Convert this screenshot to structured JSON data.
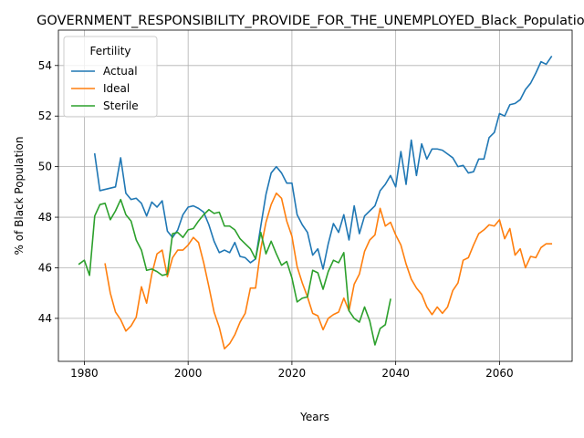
{
  "chart_data": {
    "type": "line",
    "title": "GOVERNMENT_RESPONSIBILITY_PROVIDE_FOR_THE_UNEMPLOYED_Black_Population",
    "xlabel": "Years",
    "ylabel": "% of Black Population",
    "xlim": [
      1975,
      2074
    ],
    "ylim": [
      42.3,
      55.4
    ],
    "xticks": [
      1980,
      2000,
      2020,
      2040,
      2060
    ],
    "yticks": [
      44,
      46,
      48,
      50,
      52,
      54
    ],
    "grid": true,
    "legend": {
      "title": "Fertility",
      "placement": "top-left"
    },
    "series": [
      {
        "name": "Actual",
        "color": "#1f77b4",
        "x": [
          1982,
          1983,
          1984,
          1985,
          1986,
          1987,
          1988,
          1989,
          1990,
          1991,
          1992,
          1993,
          1994,
          1995,
          1996,
          1997,
          1998,
          1999,
          2000,
          2001,
          2002,
          2003,
          2004,
          2005,
          2006,
          2007,
          2008,
          2009,
          2010,
          2011,
          2012,
          2013,
          2014,
          2015,
          2016,
          2017,
          2018,
          2019,
          2020,
          2021,
          2022,
          2023,
          2024,
          2025,
          2026,
          2027,
          2028,
          2029,
          2030,
          2031,
          2032,
          2033,
          2034,
          2035,
          2036,
          2037,
          2038,
          2039,
          2040,
          2041,
          2042,
          2043,
          2044,
          2045,
          2046,
          2047,
          2048,
          2049,
          2050,
          2051,
          2052,
          2053,
          2054,
          2055,
          2056,
          2057,
          2058,
          2059,
          2060,
          2061,
          2062,
          2063,
          2064,
          2065,
          2066,
          2067,
          2068,
          2069,
          2070
        ],
        "y": [
          50.5,
          49.05,
          49.1,
          49.15,
          49.2,
          50.35,
          48.95,
          48.7,
          48.75,
          48.55,
          48.05,
          48.6,
          48.4,
          48.65,
          47.45,
          47.2,
          47.5,
          48.1,
          48.4,
          48.45,
          48.35,
          48.2,
          47.7,
          47.05,
          46.6,
          46.7,
          46.6,
          47.0,
          46.45,
          46.4,
          46.2,
          46.35,
          47.65,
          48.9,
          49.75,
          50.0,
          49.75,
          49.35,
          49.35,
          48.1,
          47.7,
          47.4,
          46.5,
          46.75,
          45.95,
          46.95,
          47.75,
          47.4,
          48.1,
          47.1,
          48.45,
          47.35,
          48.05,
          48.25,
          48.45,
          49.05,
          49.3,
          49.65,
          49.2,
          50.6,
          49.3,
          51.05,
          49.65,
          50.9,
          50.3,
          50.7,
          50.7,
          50.65,
          50.5,
          50.35,
          50.0,
          50.05,
          49.75,
          49.8,
          50.3,
          50.3,
          51.15,
          51.35,
          52.1,
          52.0,
          52.45,
          52.5,
          52.65,
          53.05,
          53.3,
          53.7,
          54.15,
          54.05,
          54.35
        ]
      },
      {
        "name": "Ideal",
        "color": "#ff7f0e",
        "x": [
          1984,
          1985,
          1986,
          1987,
          1988,
          1989,
          1990,
          1991,
          1992,
          1993,
          1994,
          1995,
          1996,
          1997,
          1998,
          1999,
          2000,
          2001,
          2002,
          2003,
          2004,
          2005,
          2006,
          2007,
          2008,
          2009,
          2010,
          2011,
          2012,
          2013,
          2014,
          2015,
          2016,
          2017,
          2018,
          2019,
          2020,
          2021,
          2022,
          2023,
          2024,
          2025,
          2026,
          2027,
          2028,
          2029,
          2030,
          2031,
          2032,
          2033,
          2034,
          2035,
          2036,
          2037,
          2038,
          2039,
          2040,
          2041,
          2042,
          2043,
          2044,
          2045,
          2046,
          2047,
          2048,
          2049,
          2050,
          2051,
          2052,
          2053,
          2054,
          2055,
          2056,
          2057,
          2058,
          2059,
          2060,
          2061,
          2062,
          2063,
          2064,
          2065,
          2066,
          2067,
          2068,
          2069,
          2070
        ],
        "y": [
          46.15,
          45.0,
          44.25,
          43.95,
          43.5,
          43.7,
          44.05,
          45.25,
          44.6,
          45.75,
          46.55,
          46.7,
          45.65,
          46.4,
          46.7,
          46.7,
          46.9,
          47.2,
          47.0,
          46.2,
          45.25,
          44.25,
          43.65,
          42.8,
          43.0,
          43.35,
          43.85,
          44.2,
          45.2,
          45.2,
          46.75,
          47.8,
          48.5,
          48.95,
          48.75,
          47.85,
          47.25,
          46.05,
          45.4,
          44.85,
          44.2,
          44.1,
          43.55,
          44.0,
          44.15,
          44.25,
          44.8,
          44.3,
          45.35,
          45.75,
          46.65,
          47.1,
          47.3,
          48.35,
          47.65,
          47.8,
          47.3,
          46.9,
          46.15,
          45.55,
          45.2,
          44.95,
          44.45,
          44.15,
          44.45,
          44.2,
          44.45,
          45.1,
          45.4,
          46.3,
          46.4,
          46.9,
          47.35,
          47.5,
          47.7,
          47.65,
          47.9,
          47.15,
          47.55,
          46.5,
          46.75,
          46.0,
          46.45,
          46.4,
          46.8,
          46.95,
          46.95
        ]
      },
      {
        "name": "Sterile",
        "color": "#2ca02c",
        "x": [
          1979,
          1980,
          1981,
          1982,
          1983,
          1984,
          1985,
          1986,
          1987,
          1988,
          1989,
          1990,
          1991,
          1992,
          1993,
          1994,
          1995,
          1996,
          1997,
          1998,
          1999,
          2000,
          2001,
          2002,
          2003,
          2004,
          2005,
          2006,
          2007,
          2008,
          2009,
          2010,
          2011,
          2012,
          2013,
          2014,
          2015,
          2016,
          2017,
          2018,
          2019,
          2020,
          2021,
          2022,
          2023,
          2024,
          2025,
          2026,
          2027,
          2028,
          2029,
          2030,
          2031,
          2032,
          2033,
          2034,
          2035,
          2036,
          2037,
          2038,
          2039
        ],
        "y": [
          46.15,
          46.3,
          45.7,
          48.05,
          48.5,
          48.55,
          47.9,
          48.25,
          48.7,
          48.1,
          47.85,
          47.1,
          46.7,
          45.9,
          45.95,
          45.85,
          45.7,
          45.75,
          47.35,
          47.4,
          47.2,
          47.5,
          47.55,
          47.85,
          48.1,
          48.3,
          48.15,
          48.2,
          47.65,
          47.65,
          47.5,
          47.15,
          46.95,
          46.75,
          46.35,
          47.4,
          46.55,
          47.05,
          46.55,
          46.1,
          46.25,
          45.6,
          44.65,
          44.8,
          44.85,
          45.9,
          45.8,
          45.15,
          45.85,
          46.3,
          46.2,
          46.6,
          44.3,
          44.0,
          43.85,
          44.45,
          43.9,
          42.95,
          43.6,
          43.75,
          44.75
        ]
      }
    ]
  }
}
